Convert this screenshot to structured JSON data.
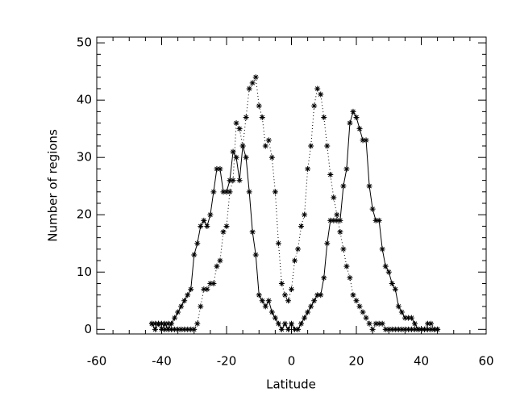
{
  "chart_data": {
    "type": "line",
    "x_label": "Latitude",
    "y_label": "Number of regions",
    "x": [
      -43,
      -42,
      -41,
      -40,
      -39,
      -38,
      -37,
      -36,
      -35,
      -34,
      -33,
      -32,
      -31,
      -30,
      -29,
      -28,
      -27,
      -26,
      -25,
      -24,
      -23,
      -22,
      -21,
      -20,
      -19,
      -18,
      -17,
      -16,
      -15,
      -14,
      -13,
      -12,
      -11,
      -10,
      -9,
      -8,
      -7,
      -6,
      -5,
      -4,
      -3,
      -2,
      -1,
      0,
      1,
      2,
      3,
      4,
      5,
      6,
      7,
      8,
      9,
      10,
      11,
      12,
      13,
      14,
      15,
      16,
      17,
      18,
      19,
      20,
      21,
      22,
      23,
      24,
      25,
      26,
      27,
      28,
      29,
      30,
      31,
      32,
      33,
      34,
      35,
      36,
      37,
      38,
      39,
      40,
      41,
      42,
      43,
      44,
      45
    ],
    "series": [
      {
        "color": "#000000",
        "line_style": "solid",
        "marker": "asterisk",
        "values": [
          1,
          0,
          1,
          0,
          1,
          0,
          1,
          2,
          3,
          4,
          5,
          6,
          7,
          13,
          15,
          18,
          19,
          18,
          20,
          24,
          28,
          28,
          24,
          24,
          26,
          31,
          30,
          26,
          32,
          30,
          24,
          17,
          13,
          6,
          5,
          4,
          5,
          3,
          2,
          1,
          0,
          1,
          0,
          1,
          0,
          0,
          1,
          2,
          3,
          4,
          5,
          6,
          6,
          9,
          15,
          19,
          19,
          19,
          19,
          25,
          28,
          36,
          38,
          37,
          35,
          33,
          33,
          25,
          21,
          19,
          19,
          14,
          11,
          10,
          8,
          7,
          4,
          3,
          2,
          2,
          2,
          1,
          0,
          0,
          0,
          0,
          0,
          0,
          0
        ]
      },
      {
        "color": "#000000",
        "line_style": "dotted",
        "marker": "asterisk",
        "values": [
          1,
          1,
          1,
          1,
          0,
          1,
          0,
          0,
          0,
          0,
          0,
          0,
          0,
          0,
          1,
          4,
          7,
          7,
          8,
          8,
          11,
          12,
          17,
          18,
          24,
          26,
          36,
          35,
          32,
          37,
          42,
          43,
          44,
          39,
          37,
          32,
          33,
          30,
          24,
          15,
          8,
          6,
          5,
          7,
          12,
          14,
          18,
          20,
          28,
          32,
          39,
          42,
          41,
          37,
          32,
          27,
          23,
          20,
          17,
          14,
          11,
          9,
          6,
          5,
          4,
          3,
          2,
          1,
          0,
          1,
          1,
          1,
          0,
          0,
          0,
          0,
          0,
          0,
          0,
          0,
          0,
          0,
          0,
          0,
          0,
          1,
          1,
          0,
          0
        ]
      }
    ],
    "xlim": [
      -60,
      60
    ],
    "xticks": [
      -60,
      -40,
      -20,
      0,
      20,
      40,
      60
    ],
    "ylim": [
      -0.8,
      51
    ],
    "yticks": [
      0,
      10,
      20,
      30,
      40,
      50
    ]
  }
}
